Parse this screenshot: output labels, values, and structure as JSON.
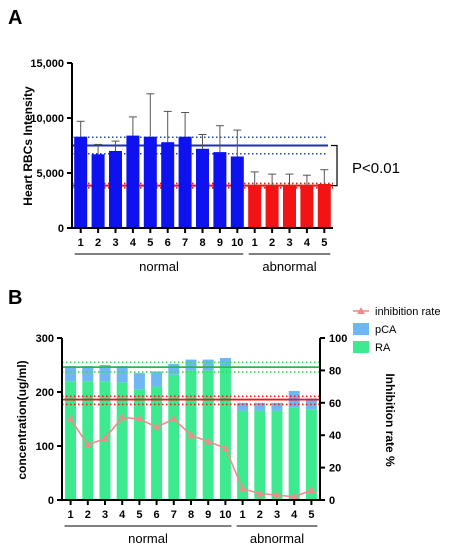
{
  "chart_data": [
    {
      "panel_label": "A",
      "type": "bar",
      "ylabel": "Heart RBCs Intensity",
      "ylim": [
        0,
        15000
      ],
      "yticks": [
        "0",
        "5,000",
        "10,000",
        "15,000"
      ],
      "categories": [
        "1",
        "2",
        "3",
        "4",
        "5",
        "6",
        "7",
        "8",
        "9",
        "10",
        "1",
        "2",
        "3",
        "4",
        "5"
      ],
      "values": [
        8300,
        6700,
        7000,
        8400,
        8300,
        7800,
        8300,
        7200,
        6900,
        6500,
        3900,
        3800,
        3800,
        3800,
        4000
      ],
      "errors": [
        1400,
        900,
        900,
        1700,
        3900,
        2800,
        2200,
        1300,
        2400,
        2400,
        1200,
        1100,
        1100,
        1000,
        1300
      ],
      "groups": [
        {
          "name": "normal",
          "start": 0,
          "end": 9,
          "color": "#0d12ee"
        },
        {
          "name": "abnormal",
          "start": 10,
          "end": 14,
          "color": "#f21414"
        }
      ],
      "reference_lines": [
        {
          "value": 7500,
          "color": "#1f2fb0",
          "style": "solid"
        },
        {
          "value": 8250,
          "color": "#2b3cd6",
          "style": "dotted"
        },
        {
          "value": 6750,
          "color": "#2b3cd6",
          "style": "dotted"
        },
        {
          "value": 3850,
          "color": "#e81a1a",
          "style": "solid"
        },
        {
          "value": 4050,
          "color": "#e81a1a",
          "style": "dotted"
        },
        {
          "value": 3650,
          "color": "#e81a1a",
          "style": "dotted"
        }
      ],
      "annotation": "P<0.01",
      "bracket_range": [
        3850,
        7500
      ]
    },
    {
      "panel_label": "B",
      "type": "bar",
      "stacked": true,
      "ylabel": "concentration(ug/ml)",
      "y2label": "Inhibition rate %",
      "ylim": [
        0,
        300
      ],
      "y2lim": [
        0,
        100
      ],
      "yticks": [
        "0",
        "100",
        "200",
        "300"
      ],
      "y2ticks": [
        "0",
        "20",
        "40",
        "60",
        "80",
        "100"
      ],
      "categories": [
        "1",
        "2",
        "3",
        "4",
        "5",
        "6",
        "7",
        "8",
        "9",
        "10",
        "1",
        "2",
        "3",
        "4",
        "5"
      ],
      "series": [
        {
          "name": "RA",
          "color": "#3dea8f",
          "values": [
            220,
            220,
            220,
            218,
            205,
            210,
            232,
            240,
            240,
            248,
            165,
            165,
            165,
            172,
            168
          ]
        },
        {
          "name": "pCA",
          "color": "#6fb7f4",
          "values": [
            28,
            28,
            30,
            30,
            30,
            28,
            20,
            20,
            20,
            15,
            15,
            15,
            15,
            30,
            20
          ]
        },
        {
          "name": "inhibition rate",
          "color": "#f08c8c",
          "axis": "right",
          "values": [
            50,
            34,
            38,
            51,
            50,
            45,
            50,
            40,
            36,
            32,
            7,
            4,
            3,
            2,
            6
          ]
        }
      ],
      "groups": [
        {
          "name": "normal",
          "start": 0,
          "end": 9
        },
        {
          "name": "abnormal",
          "start": 10,
          "end": 14
        }
      ],
      "reference_lines_right_axis": [
        {
          "value": 82,
          "color": "#2db84a",
          "style": "solid"
        },
        {
          "value": 85,
          "color": "#3fd65a",
          "style": "dotted"
        },
        {
          "value": 79,
          "color": "#3fd65a",
          "style": "dotted"
        },
        {
          "value": 62,
          "color": "#e81a1a",
          "style": "solid"
        },
        {
          "value": 64,
          "color": "#e81a1a",
          "style": "dotted"
        },
        {
          "value": 59,
          "color": "#e81a1a",
          "style": "dotted"
        }
      ],
      "legend": [
        "inhibition rate",
        "pCA",
        "RA"
      ],
      "legend_position": "top-right"
    }
  ]
}
